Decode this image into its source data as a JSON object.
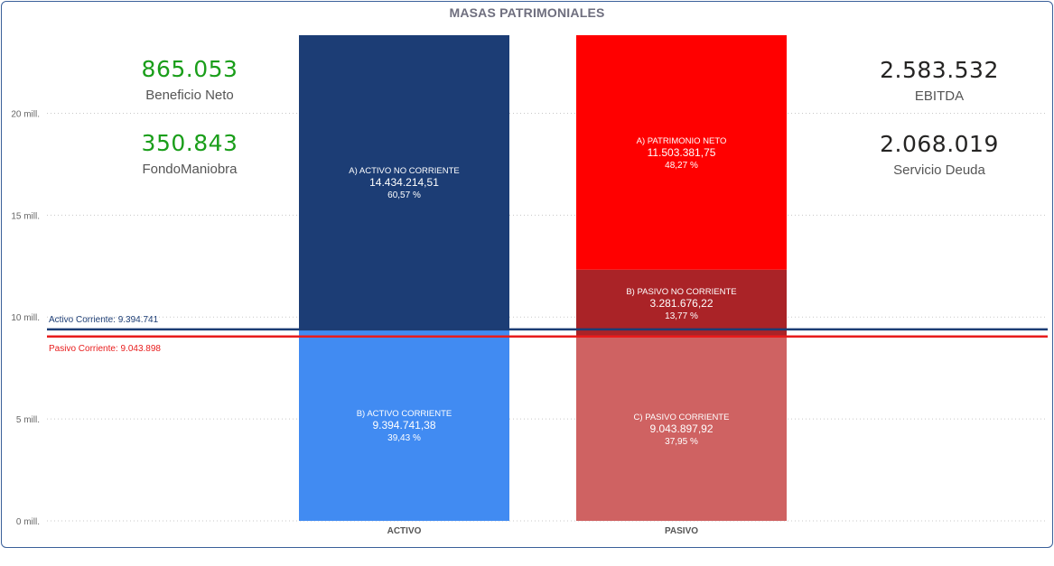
{
  "chart_data": {
    "type": "bar",
    "subtype": "stacked-100-with-reference-lines",
    "title": "MASAS PATRIMONIALES",
    "categories": [
      "ACTIVO",
      "PASIVO"
    ],
    "y_ticks": [
      "0 mill.",
      "5 mill.",
      "10 mill.",
      "15 mill.",
      "20 mill."
    ],
    "y_tick_values": [
      0,
      5000000,
      10000000,
      15000000,
      20000000
    ],
    "ylim": [
      0,
      23828956
    ],
    "grid": true,
    "segments": [
      {
        "category": "ACTIVO",
        "name": "B) ACTIVO CORRIENTE",
        "value": 9394741.38,
        "value_label": "9.394.741,38",
        "pct_label": "39,43 %",
        "color": "#418bf2"
      },
      {
        "category": "ACTIVO",
        "name": "A) ACTIVO NO CORRIENTE",
        "value": 14434214.51,
        "value_label": "14.434.214,51",
        "pct_label": "60,57 %",
        "color": "#1c3d75"
      },
      {
        "category": "PASIVO",
        "name": "C) PASIVO CORRIENTE",
        "value": 9043897.92,
        "value_label": "9.043.897,92",
        "pct_label": "37,95 %",
        "color": "#cf6262"
      },
      {
        "category": "PASIVO",
        "name": "B) PASIVO NO CORRIENTE",
        "value": 3281676.22,
        "value_label": "3.281.676,22",
        "pct_label": "13,77 %",
        "color": "#aa2327"
      },
      {
        "category": "PASIVO",
        "name": "A) PATRIMONIO NETO",
        "value": 11503381.75,
        "value_label": "11.503.381,75",
        "pct_label": "48,27 %",
        "color": "#ff0000"
      }
    ],
    "reference_lines": [
      {
        "label": "Activo Corriente: 9.394.741",
        "value": 9394741,
        "color": "#1c3d75"
      },
      {
        "label": "Pasivo Corriente: 9.043.898",
        "value": 9043898,
        "color": "#e81c1c"
      }
    ]
  },
  "kpis": {
    "beneficio_neto": {
      "value": "865.053",
      "label": "Beneficio Neto",
      "color": "#1a9e1a"
    },
    "fondo_maniobra": {
      "value": "350.843",
      "label": "FondoManiobra",
      "color": "#1a9e1a"
    },
    "ebitda": {
      "value": "2.583.532",
      "label": "EBITDA",
      "color": "#252423"
    },
    "servicio_deuda": {
      "value": "2.068.019",
      "label": "Servicio Deuda",
      "color": "#252423"
    }
  }
}
